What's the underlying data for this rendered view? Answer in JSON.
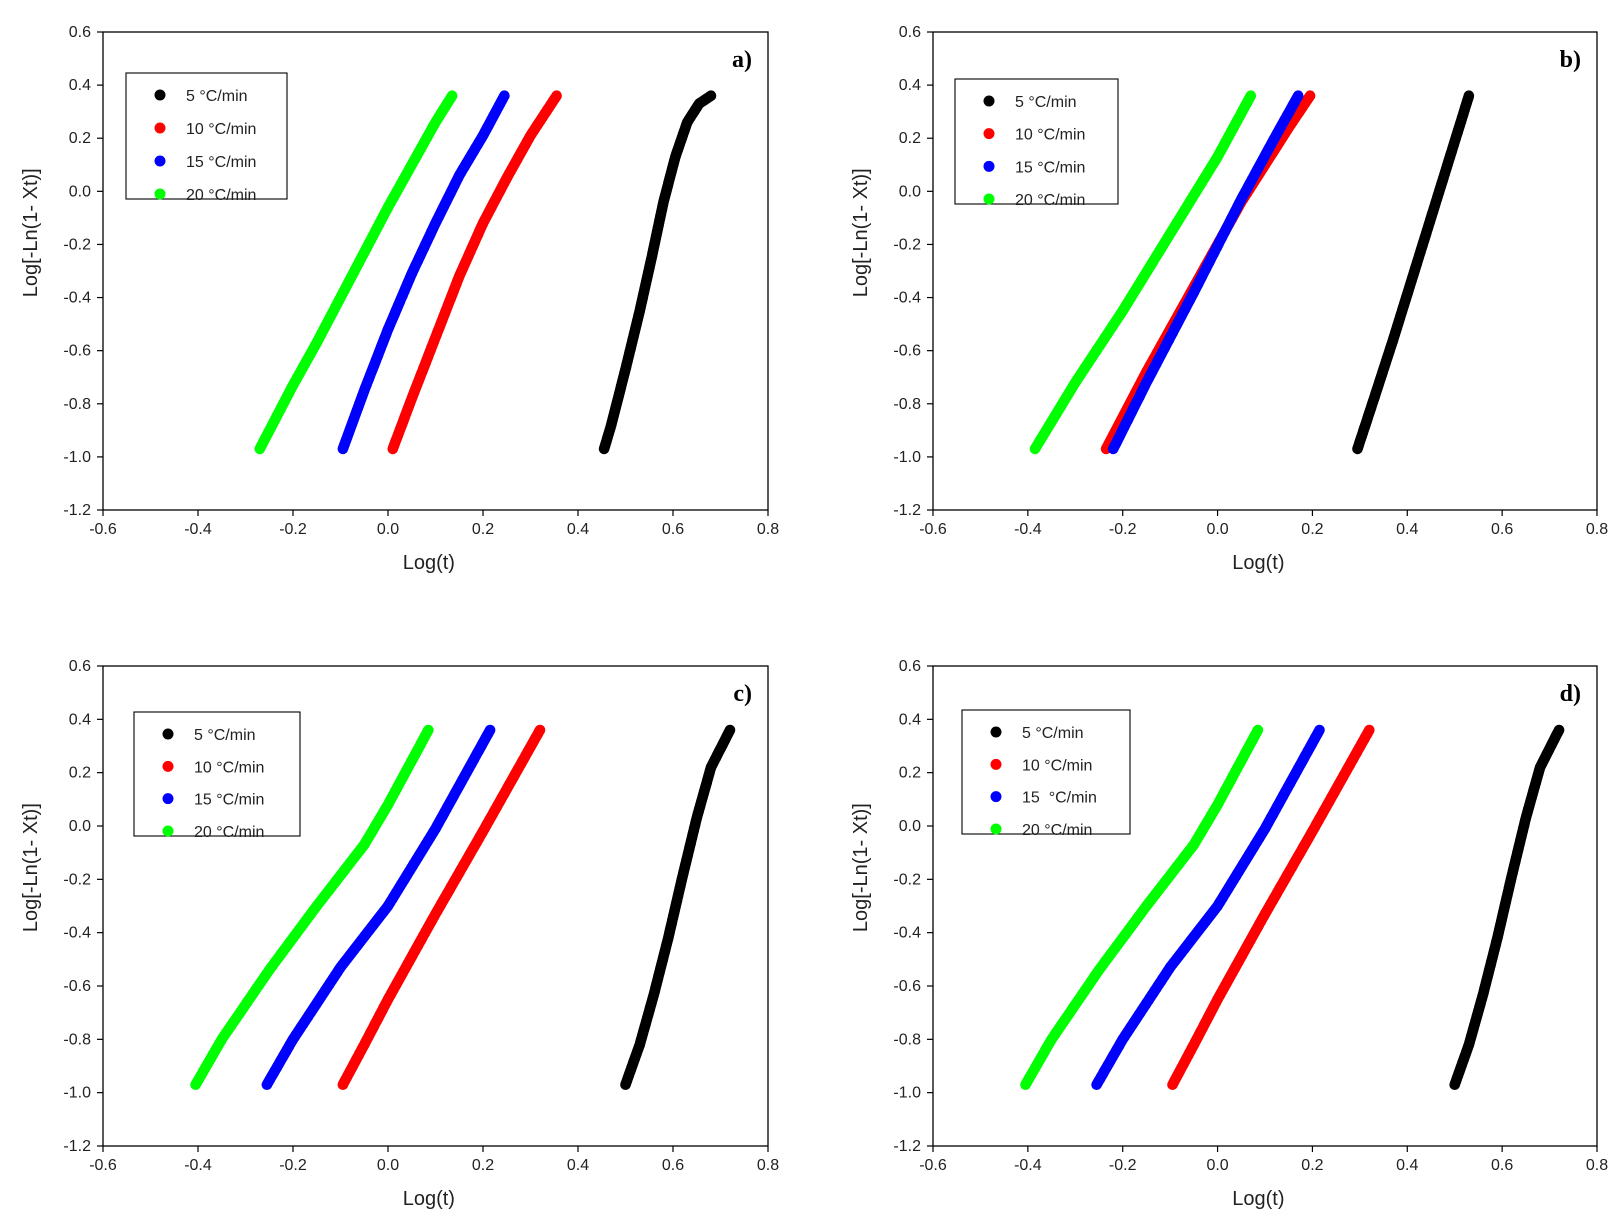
{
  "colors": {
    "series_5": "#000000",
    "series_10": "#ff0000",
    "series_15": "#0000ff",
    "series_20": "#00ff00",
    "axis": "#000000"
  },
  "chart_data": [
    {
      "type": "scatter",
      "panel_label": "a)",
      "xlabel": "Log(t)",
      "ylabel": "Log[-Ln(1- Xt)]",
      "xlim": [
        -0.6,
        0.8
      ],
      "ylim": [
        -1.2,
        0.6
      ],
      "xticks": [
        "-0.6",
        "-0.4",
        "-0.2",
        "0.0",
        "0.2",
        "0.4",
        "0.6",
        "0.8"
      ],
      "yticks": [
        "-1.2",
        "-1.0",
        "-0.8",
        "-0.6",
        "-0.4",
        "-0.2",
        "0.0",
        "0.2",
        "0.4",
        "0.6"
      ],
      "legend_position": "top-left",
      "series": [
        {
          "name": "5 °C/min",
          "color_key": "series_5",
          "x": [
            0.455,
            0.47,
            0.5,
            0.53,
            0.555,
            0.58,
            0.605,
            0.63,
            0.655,
            0.68
          ],
          "y": [
            -0.97,
            -0.88,
            -0.67,
            -0.45,
            -0.25,
            -0.04,
            0.13,
            0.26,
            0.33,
            0.36
          ]
        },
        {
          "name": "10 °C/min",
          "color_key": "series_10",
          "x": [
            0.01,
            0.05,
            0.1,
            0.15,
            0.2,
            0.25,
            0.3,
            0.355
          ],
          "y": [
            -0.97,
            -0.78,
            -0.55,
            -0.32,
            -0.12,
            0.05,
            0.21,
            0.36
          ]
        },
        {
          "name": "15 °C/min",
          "color_key": "series_15",
          "x": [
            -0.095,
            -0.05,
            0.0,
            0.05,
            0.1,
            0.15,
            0.2,
            0.245
          ],
          "y": [
            -0.97,
            -0.75,
            -0.52,
            -0.31,
            -0.12,
            0.06,
            0.21,
            0.36
          ]
        },
        {
          "name": "20 °C/min",
          "color_key": "series_20",
          "x": [
            -0.27,
            -0.2,
            -0.15,
            -0.1,
            -0.05,
            0.0,
            0.05,
            0.1,
            0.135
          ],
          "y": [
            -0.97,
            -0.73,
            -0.57,
            -0.4,
            -0.23,
            -0.06,
            0.1,
            0.26,
            0.36
          ]
        }
      ]
    },
    {
      "type": "scatter",
      "panel_label": "b)",
      "xlabel": "Log(t)",
      "ylabel": "Log[-Ln(1- Xt)]",
      "xlim": [
        -0.6,
        0.8
      ],
      "ylim": [
        -1.2,
        0.6
      ],
      "xticks": [
        "-0.6",
        "-0.4",
        "-0.2",
        "0.0",
        "0.2",
        "0.4",
        "0.6",
        "0.8"
      ],
      "yticks": [
        "-1.2",
        "-1.0",
        "-0.8",
        "-0.6",
        "-0.4",
        "-0.2",
        "0.0",
        "0.2",
        "0.4",
        "0.6"
      ],
      "legend_position": "top-left",
      "series": [
        {
          "name": "5 °C/min",
          "color_key": "series_5",
          "x": [
            0.295,
            0.33,
            0.37,
            0.41,
            0.45,
            0.49,
            0.53
          ],
          "y": [
            -0.97,
            -0.78,
            -0.56,
            -0.33,
            -0.1,
            0.13,
            0.36
          ]
        },
        {
          "name": "10 °C/min",
          "color_key": "series_10",
          "x": [
            -0.235,
            -0.15,
            -0.05,
            0.05,
            0.15,
            0.195
          ],
          "y": [
            -0.97,
            -0.68,
            -0.36,
            -0.04,
            0.24,
            0.36
          ]
        },
        {
          "name": "15 °C/min",
          "color_key": "series_15",
          "x": [
            -0.22,
            -0.15,
            -0.05,
            0.05,
            0.12,
            0.17
          ],
          "y": [
            -0.97,
            -0.72,
            -0.38,
            -0.03,
            0.2,
            0.36
          ]
        },
        {
          "name": "20 °C/min",
          "color_key": "series_20",
          "x": [
            -0.385,
            -0.3,
            -0.2,
            -0.1,
            0.0,
            0.07
          ],
          "y": [
            -0.97,
            -0.72,
            -0.45,
            -0.16,
            0.13,
            0.36
          ]
        }
      ]
    },
    {
      "type": "scatter",
      "panel_label": "c)",
      "xlabel": "Log(t)",
      "ylabel": "Log[-Ln(1- Xt)]",
      "xlim": [
        -0.6,
        0.8
      ],
      "ylim": [
        -1.2,
        0.6
      ],
      "xticks": [
        "-0.6",
        "-0.4",
        "-0.2",
        "0.0",
        "0.2",
        "0.4",
        "0.6",
        "0.8"
      ],
      "yticks": [
        "-1.2",
        "-1.0",
        "-0.8",
        "-0.6",
        "-0.4",
        "-0.2",
        "0.0",
        "0.2",
        "0.4",
        "0.6"
      ],
      "legend_position": "top-left",
      "series": [
        {
          "name": "5 °C/min",
          "color_key": "series_5",
          "x": [
            0.5,
            0.53,
            0.56,
            0.59,
            0.62,
            0.65,
            0.68,
            0.72
          ],
          "y": [
            -0.97,
            -0.82,
            -0.63,
            -0.42,
            -0.19,
            0.03,
            0.22,
            0.36
          ]
        },
        {
          "name": "10 °C/min",
          "color_key": "series_10",
          "x": [
            -0.095,
            -0.05,
            0.0,
            0.1,
            0.2,
            0.32
          ],
          "y": [
            -0.97,
            -0.82,
            -0.65,
            -0.33,
            -0.02,
            0.36
          ]
        },
        {
          "name": "15 °C/min",
          "color_key": "series_15",
          "x": [
            -0.255,
            -0.2,
            -0.1,
            0.0,
            0.1,
            0.215
          ],
          "y": [
            -0.97,
            -0.8,
            -0.53,
            -0.3,
            -0.01,
            0.36
          ]
        },
        {
          "name": "20 °C/min",
          "color_key": "series_20",
          "x": [
            -0.405,
            -0.35,
            -0.25,
            -0.15,
            -0.05,
            0.0,
            0.085
          ],
          "y": [
            -0.97,
            -0.8,
            -0.54,
            -0.3,
            -0.07,
            0.08,
            0.36
          ]
        }
      ]
    },
    {
      "type": "scatter",
      "panel_label": "d)",
      "xlabel": "Log(t)",
      "ylabel": "Log[-Ln(1- Xt)]",
      "xlim": [
        -0.6,
        0.8
      ],
      "ylim": [
        -1.2,
        0.6
      ],
      "xticks": [
        "-0.6",
        "-0.4",
        "-0.2",
        "0.0",
        "0.2",
        "0.4",
        "0.6",
        "0.8"
      ],
      "yticks": [
        "-1.2",
        "-1.0",
        "-0.8",
        "-0.6",
        "-0.4",
        "-0.2",
        "0.0",
        "0.2",
        "0.4",
        "0.6"
      ],
      "legend_position": "top-left",
      "series": [
        {
          "name": "5 °C/min",
          "color_key": "series_5",
          "x": [
            0.5,
            0.53,
            0.56,
            0.59,
            0.62,
            0.65,
            0.68,
            0.72
          ],
          "y": [
            -0.97,
            -0.82,
            -0.63,
            -0.42,
            -0.19,
            0.03,
            0.22,
            0.36
          ]
        },
        {
          "name": "10 °C/min",
          "color_key": "series_10",
          "x": [
            -0.095,
            -0.05,
            0.0,
            0.1,
            0.2,
            0.32
          ],
          "y": [
            -0.97,
            -0.82,
            -0.65,
            -0.33,
            -0.02,
            0.36
          ]
        },
        {
          "name": "15  °C/min",
          "color_key": "series_15",
          "x": [
            -0.255,
            -0.2,
            -0.1,
            0.0,
            0.1,
            0.215
          ],
          "y": [
            -0.97,
            -0.8,
            -0.53,
            -0.3,
            -0.01,
            0.36
          ]
        },
        {
          "name": "20 °C/min",
          "color_key": "series_20",
          "x": [
            -0.405,
            -0.35,
            -0.25,
            -0.15,
            -0.05,
            0.0,
            0.085
          ],
          "y": [
            -0.97,
            -0.8,
            -0.54,
            -0.3,
            -0.07,
            0.08,
            0.36
          ]
        }
      ]
    }
  ]
}
